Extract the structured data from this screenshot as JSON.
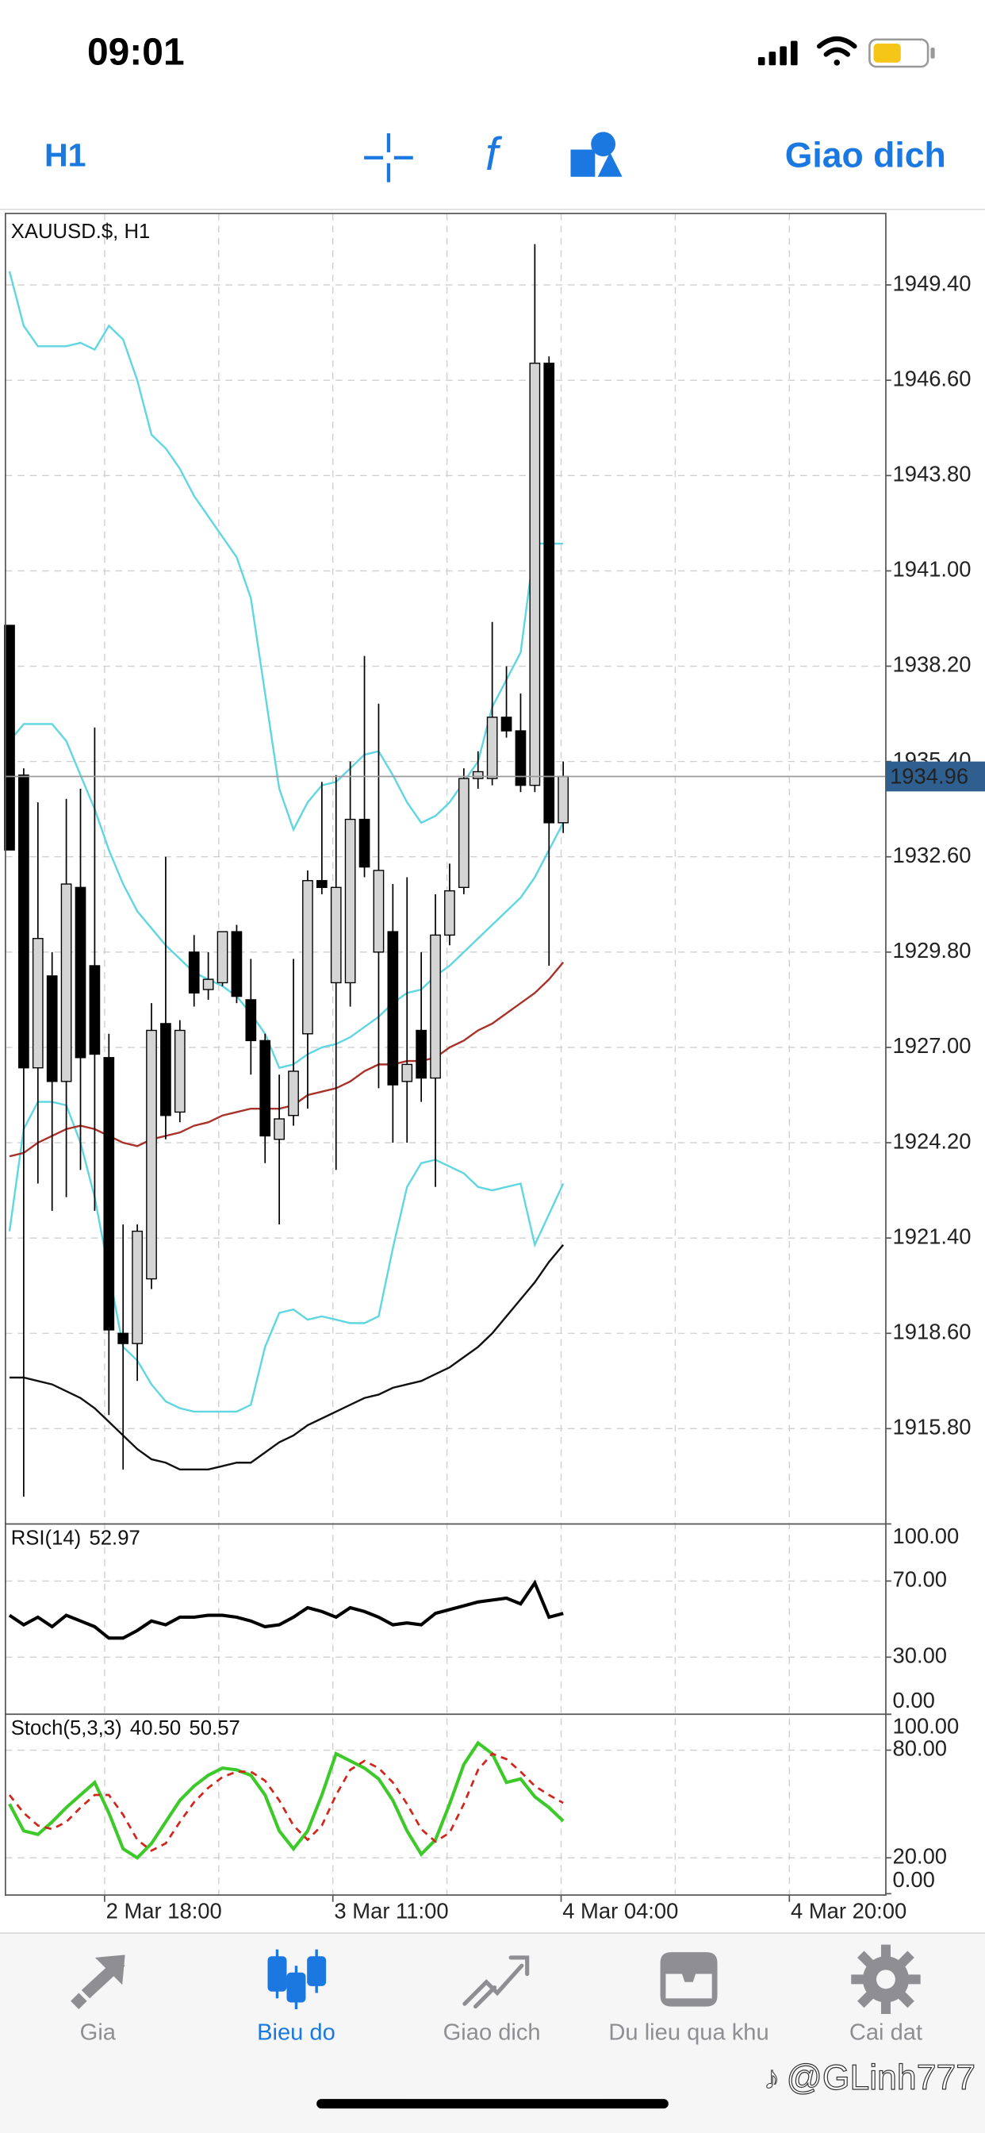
{
  "status_bar": {
    "time": "09:01"
  },
  "toolbar": {
    "timeframe": "H1",
    "trade": "Giao dich"
  },
  "chart_data": {
    "type": "candlestick",
    "title": "XAUUSD.$, H1",
    "open": [
      1939.4,
      1935.0,
      1926.4,
      1929.1,
      1926.0,
      1931.7,
      1929.4,
      1926.7,
      1918.6,
      1918.3,
      1920.2,
      1927.7,
      1925.1,
      1929.8,
      1928.7,
      1928.9,
      1930.4,
      1928.4,
      1927.2,
      1924.3,
      1925.0,
      1927.4,
      1931.9,
      1928.9,
      1928.9,
      1933.7,
      1929.8,
      1930.4,
      1926.0,
      1927.5,
      1926.1,
      1930.3,
      1931.7,
      1934.9,
      1934.9,
      1936.7,
      1936.3,
      1934.7,
      1947.1,
      1933.6
    ],
    "high": [
      1939.4,
      1935.2,
      1934.2,
      1929.8,
      1934.3,
      1934.6,
      1936.4,
      1927.4,
      1921.8,
      1921.8,
      1928.3,
      1932.6,
      1927.8,
      1930.3,
      1929.8,
      1930.4,
      1930.6,
      1929.6,
      1927.4,
      1926.2,
      1929.6,
      1932.2,
      1934.8,
      1935.0,
      1935.4,
      1938.5,
      1937.1,
      1931.8,
      1932.0,
      1929.8,
      1931.5,
      1932.4,
      1935.2,
      1935.7,
      1939.5,
      1938.2,
      1937.4,
      1950.6,
      1947.3,
      1935.4
    ],
    "low": [
      1932.8,
      1913.8,
      1923.0,
      1922.2,
      1922.6,
      1923.4,
      1922.2,
      1916.2,
      1914.6,
      1917.2,
      1919.9,
      1924.3,
      1924.8,
      1928.2,
      1928.4,
      1928.8,
      1928.3,
      1926.2,
      1923.6,
      1921.8,
      1924.7,
      1925.2,
      1931.5,
      1923.4,
      1928.2,
      1932.0,
      1925.8,
      1924.2,
      1924.2,
      1925.4,
      1922.9,
      1930.0,
      1931.5,
      1934.6,
      1934.7,
      1936.1,
      1934.5,
      1934.5,
      1929.4,
      1933.3
    ],
    "close": [
      1932.8,
      1926.4,
      1930.2,
      1926.0,
      1931.8,
      1926.7,
      1926.8,
      1918.7,
      1918.3,
      1921.6,
      1927.5,
      1925.0,
      1927.5,
      1928.6,
      1929.0,
      1930.4,
      1928.5,
      1927.2,
      1924.4,
      1924.9,
      1926.3,
      1931.9,
      1931.7,
      1931.7,
      1933.7,
      1932.3,
      1932.2,
      1925.9,
      1926.5,
      1926.1,
      1930.3,
      1931.6,
      1934.9,
      1935.1,
      1936.7,
      1936.3,
      1934.7,
      1947.1,
      1933.6,
      1934.96
    ],
    "up_color": "#d4d4d4",
    "down_color": "#000000",
    "series": [
      {
        "color": "#5fd6e0",
        "values": [
          1949.8,
          1948.2,
          1947.6,
          1947.6,
          1947.6,
          1947.7,
          1947.5,
          1948.2,
          1947.8,
          1946.6,
          1945.0,
          1944.6,
          1944.0,
          1943.2,
          1942.6,
          1942.0,
          1941.4,
          1940.2,
          1937.4,
          1934.6,
          1933.4,
          1934.2,
          1934.7,
          1934.8,
          1935.2,
          1935.6,
          1935.7,
          1935.0,
          1934.2,
          1933.6,
          1933.8,
          1934.2,
          1934.8,
          1935.4,
          1937.0,
          1937.8,
          1938.6,
          1941.8,
          1941.8,
          1941.8
        ]
      },
      {
        "color": "#5fd6e0",
        "values": [
          1936.0,
          1936.5,
          1936.5,
          1936.5,
          1936.0,
          1935.0,
          1934.0,
          1932.8,
          1931.8,
          1931.0,
          1930.5,
          1930.0,
          1929.6,
          1929.2,
          1929.0,
          1928.8,
          1928.5,
          1928.0,
          1927.4,
          1926.4,
          1926.5,
          1926.8,
          1927.0,
          1927.1,
          1927.3,
          1927.6,
          1927.9,
          1928.3,
          1928.6,
          1928.7,
          1929.1,
          1929.4,
          1929.8,
          1930.2,
          1930.6,
          1931.0,
          1931.4,
          1932.0,
          1932.8,
          1933.6
        ]
      },
      {
        "color": "#5fd6e0",
        "values": [
          1921.6,
          1924.6,
          1925.4,
          1925.4,
          1925.3,
          1924.2,
          1922.6,
          1920.4,
          1918.2,
          1917.8,
          1917.1,
          1916.6,
          1916.4,
          1916.3,
          1916.3,
          1916.3,
          1916.3,
          1916.5,
          1918.2,
          1919.2,
          1919.3,
          1919.0,
          1919.1,
          1919.0,
          1918.9,
          1918.9,
          1919.1,
          1921.1,
          1922.9,
          1923.6,
          1923.7,
          1923.5,
          1923.3,
          1922.9,
          1922.8,
          1922.9,
          1923.0,
          1921.2,
          1922.1,
          1923.0
        ]
      },
      {
        "color": "#a8322a",
        "values": [
          1923.8,
          1923.9,
          1924.2,
          1924.4,
          1924.6,
          1924.7,
          1924.6,
          1924.4,
          1924.2,
          1924.1,
          1924.3,
          1924.4,
          1924.5,
          1924.7,
          1924.8,
          1925.0,
          1925.1,
          1925.2,
          1925.2,
          1925.2,
          1925.3,
          1925.6,
          1925.7,
          1925.8,
          1926.0,
          1926.3,
          1926.5,
          1926.5,
          1926.6,
          1926.6,
          1926.7,
          1927.0,
          1927.2,
          1927.5,
          1927.7,
          1928.0,
          1928.3,
          1928.6,
          1929.0,
          1929.5
        ]
      },
      {
        "color": "#111111",
        "values": [
          1917.3,
          1917.3,
          1917.2,
          1917.1,
          1916.9,
          1916.7,
          1916.4,
          1916.0,
          1915.6,
          1915.2,
          1914.9,
          1914.8,
          1914.6,
          1914.6,
          1914.6,
          1914.7,
          1914.8,
          1914.8,
          1915.1,
          1915.4,
          1915.6,
          1915.9,
          1916.1,
          1916.3,
          1916.5,
          1916.7,
          1916.8,
          1917.0,
          1917.1,
          1917.2,
          1917.4,
          1917.6,
          1917.9,
          1918.2,
          1918.6,
          1919.1,
          1919.6,
          1920.1,
          1920.7,
          1921.2
        ]
      }
    ],
    "ylim": [
      1913.0,
      1951.5
    ],
    "yticks": [
      {
        "value": 1949.4,
        "label": "1949.40"
      },
      {
        "value": 1946.6,
        "label": "1946.60"
      },
      {
        "value": 1943.8,
        "label": "1943.80"
      },
      {
        "value": 1941.0,
        "label": "1941.00"
      },
      {
        "value": 1938.2,
        "label": "1938.20"
      },
      {
        "value": 1935.4,
        "label": "1935.40"
      },
      {
        "value": 1932.6,
        "label": "1932.60"
      },
      {
        "value": 1929.8,
        "label": "1929.80"
      },
      {
        "value": 1927.0,
        "label": "1927.00"
      },
      {
        "value": 1924.2,
        "label": "1924.20"
      },
      {
        "value": 1921.4,
        "label": "1921.40"
      },
      {
        "value": 1918.6,
        "label": "1918.60"
      },
      {
        "value": 1915.8,
        "label": "1915.80"
      }
    ],
    "xticks": [
      "2 Mar 18:00",
      "3 Mar 11:00",
      "4 Mar 04:00",
      "4 Mar 20:00"
    ],
    "grid": true,
    "price_label_color": "#2f5f8f",
    "indicators": [
      {
        "title": "RSI(14)",
        "ylim": [
          0,
          100
        ],
        "yticks": [
          {
            "value": 100,
            "label": "100.00"
          },
          {
            "value": 70,
            "label": "70.00"
          },
          {
            "value": 30,
            "label": "30.00"
          },
          {
            "value": 0,
            "label": "0.00"
          }
        ],
        "series": [
          {
            "color": "#000000",
            "values": [
              52,
              47,
              51,
              46,
              52,
              49,
              46,
              40,
              40,
              44,
              49,
              47,
              51,
              51,
              52,
              52,
              51,
              49,
              46,
              47,
              51,
              56,
              54,
              51,
              56,
              54,
              51,
              47,
              48,
              47,
              53,
              55,
              57,
              59,
              60,
              61,
              58,
              69,
              51,
              52.97
            ]
          }
        ]
      },
      {
        "title": "Stoch(5,3,3)",
        "ylim": [
          0,
          100
        ],
        "yticks": [
          {
            "value": 100,
            "label": "100.00"
          },
          {
            "value": 80,
            "label": "80.00"
          },
          {
            "value": 20,
            "label": "20.00"
          },
          {
            "value": 0,
            "label": "0.00"
          }
        ],
        "series": [
          {
            "color": "#3ec92a",
            "values": [
              50,
              35,
              33,
              40,
              48,
              55,
              62,
              45,
              25,
              20,
              28,
              40,
              52,
              60,
              66,
              70,
              69,
              66,
              55,
              35,
              25,
              35,
              55,
              78,
              74,
              70,
              64,
              52,
              35,
              22,
              30,
              50,
              72,
              84,
              78,
              62,
              64,
              54,
              48,
              40.5
            ],
            "value_labels": [
              null,
              null,
              null,
              null,
              null,
              null,
              null,
              null,
              null,
              null,
              null,
              null,
              null,
              null,
              null,
              null,
              null,
              null,
              null,
              null,
              null,
              null,
              null,
              null,
              null,
              null,
              null,
              null,
              null,
              null,
              null,
              null,
              null,
              null,
              null,
              null,
              null,
              null,
              null,
              "40.50"
            ]
          },
          {
            "color": "#d0261c",
            "dashed": true,
            "values": [
              55,
              45,
              38,
              36,
              40,
              48,
              55,
              55,
              44,
              30,
              24,
              28,
              40,
              51,
              59,
              65,
              68,
              68,
              63,
              52,
              38,
              30,
              38,
              55,
              69,
              74,
              70,
              62,
              50,
              36,
              29,
              34,
              50,
              69,
              78,
              75,
              68,
              60,
              55,
              50.57
            ]
          }
        ]
      }
    ]
  },
  "tab_bar": {
    "items": [
      "Gia",
      "Bieu do",
      "Giao dich",
      "Du lieu qua khu",
      "Cai dat"
    ],
    "active": 1
  },
  "watermark": "@GLinh777"
}
